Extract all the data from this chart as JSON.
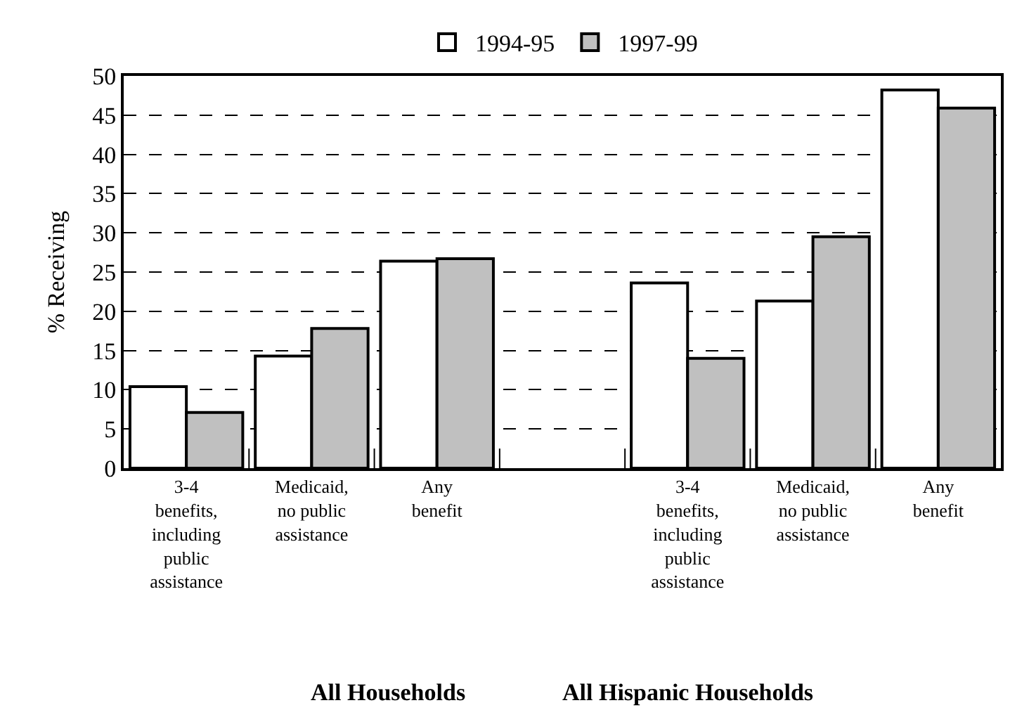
{
  "chart_data": {
    "type": "bar",
    "ylabel": "% Receiving",
    "categories": [
      "3-4\nbenefits,\nincluding\npublic\nassistance",
      "Medicaid,\nno public\nassistance",
      "Any\nbenefit",
      null,
      "3-4\nbenefits,\nincluding\npublic\nassistance",
      "Medicaid,\nno public\nassistance",
      "Any\nbenefit"
    ],
    "series": [
      {
        "name": "1994-95",
        "color": "#ffffff",
        "values": [
          10.4,
          14.3,
          26.4,
          null,
          23.6,
          21.3,
          48.2
        ]
      },
      {
        "name": "1997-99",
        "color": "#c0c0c0",
        "values": [
          7.1,
          17.8,
          26.7,
          null,
          14.0,
          29.5,
          45.9
        ]
      }
    ],
    "ylim": [
      0,
      50
    ],
    "yticks": [
      0,
      5,
      10,
      15,
      20,
      25,
      30,
      35,
      40,
      45,
      50
    ],
    "grid": "y",
    "line_style": "dashed",
    "legend": "top",
    "annotations": [
      "All Households",
      "All Hispanic Households"
    ]
  }
}
